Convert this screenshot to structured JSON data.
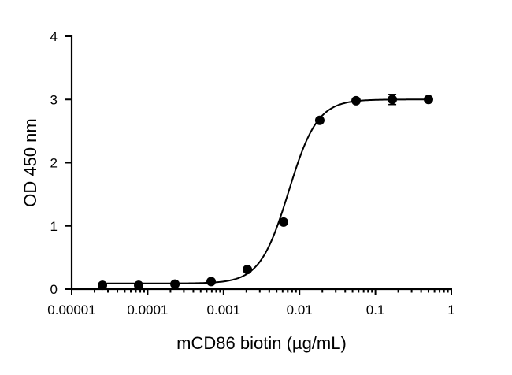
{
  "chart_data": {
    "type": "scatter",
    "title": "",
    "xlabel": "mCD86 biotin (µg/mL)",
    "ylabel": "OD 450 nm",
    "xscale": "log",
    "xlim": [
      1e-05,
      1
    ],
    "ylim": [
      0,
      4
    ],
    "grid": false,
    "x_ticks": [
      {
        "value": 1e-05,
        "label": "0.00001"
      },
      {
        "value": 0.0001,
        "label": "0.0001"
      },
      {
        "value": 0.001,
        "label": "0.001"
      },
      {
        "value": 0.01,
        "label": "0.01"
      },
      {
        "value": 0.1,
        "label": "0.1"
      },
      {
        "value": 1,
        "label": "1"
      }
    ],
    "y_ticks": [
      {
        "value": 0,
        "label": "0"
      },
      {
        "value": 1,
        "label": "1"
      },
      {
        "value": 2,
        "label": "2"
      },
      {
        "value": 3,
        "label": "3"
      },
      {
        "value": 4,
        "label": "4"
      }
    ],
    "series": [
      {
        "x": [
          2.54e-05,
          7.62e-05,
          0.000229,
          0.000686,
          0.00206,
          0.00617,
          0.0185,
          0.0556,
          0.167,
          0.5
        ],
        "y": [
          0.06,
          0.06,
          0.08,
          0.12,
          0.31,
          1.06,
          2.67,
          2.98,
          3.0,
          3.0
        ],
        "error": [
          0,
          0,
          0,
          0,
          0,
          0,
          0,
          0,
          0.08,
          0
        ]
      }
    ],
    "fit_curve": {
      "model": "4PL",
      "bottom": 0.09,
      "top": 3.0,
      "ec50": 0.0072,
      "hill": 2.3
    }
  }
}
